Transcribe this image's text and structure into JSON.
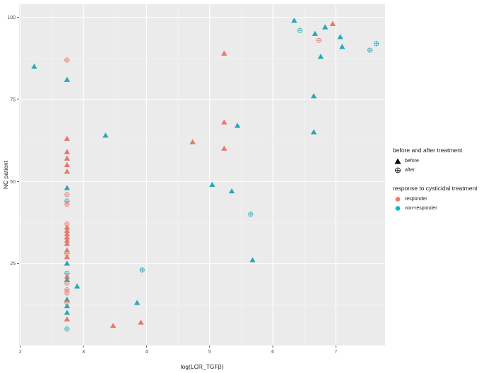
{
  "chart_data": {
    "type": "scatter",
    "xlabel": "log(LCR_TGFβ)",
    "ylabel": "NC patient",
    "xlim": [
      1.98,
      7.78
    ],
    "ylim": [
      0,
      104
    ],
    "x_ticks": [
      2,
      3,
      4,
      5,
      6,
      7
    ],
    "x_tick_labels": [
      "2",
      "3",
      "4",
      "5",
      "6",
      "7"
    ],
    "y_ticks": [
      25,
      50,
      75,
      100
    ],
    "y_tick_labels": [
      "25",
      "50",
      "75",
      "100"
    ],
    "grid": true,
    "background": "#ebebeb",
    "legend_placement": "right",
    "legend": {
      "shape_title": "before and after treatment",
      "shape_items": [
        {
          "key": "before",
          "label": "before",
          "shape": "triangle"
        },
        {
          "key": "after",
          "label": "after",
          "shape": "circle-plus"
        }
      ],
      "color_title": "response to cysticidal treatment",
      "color_items": [
        {
          "key": "responder",
          "label": "responder",
          "color": "#f8766d"
        },
        {
          "key": "non-responder",
          "label": "non-responder",
          "color": "#00bfc4"
        }
      ]
    },
    "colors": {
      "responder": "#e8776b",
      "non-responder": "#26a9b6"
    },
    "points": [
      {
        "x": 2.22,
        "y": 85,
        "group": "non-responder",
        "time": "before"
      },
      {
        "x": 2.74,
        "y": 81,
        "group": "non-responder",
        "time": "before"
      },
      {
        "x": 2.74,
        "y": 87,
        "group": "responder",
        "time": "after"
      },
      {
        "x": 2.74,
        "y": 63,
        "group": "responder",
        "time": "before"
      },
      {
        "x": 2.74,
        "y": 59,
        "group": "responder",
        "time": "before"
      },
      {
        "x": 2.74,
        "y": 57,
        "group": "responder",
        "time": "before"
      },
      {
        "x": 2.74,
        "y": 55,
        "group": "responder",
        "time": "before"
      },
      {
        "x": 2.74,
        "y": 53,
        "group": "responder",
        "time": "before"
      },
      {
        "x": 2.74,
        "y": 48,
        "group": "non-responder",
        "time": "before"
      },
      {
        "x": 2.74,
        "y": 46,
        "group": "responder",
        "time": "after"
      },
      {
        "x": 2.74,
        "y": 44,
        "group": "non-responder",
        "time": "after"
      },
      {
        "x": 2.74,
        "y": 43,
        "group": "responder",
        "time": "after"
      },
      {
        "x": 2.74,
        "y": 37,
        "group": "responder",
        "time": "after"
      },
      {
        "x": 2.74,
        "y": 36,
        "group": "responder",
        "time": "before"
      },
      {
        "x": 2.74,
        "y": 35,
        "group": "responder",
        "time": "before"
      },
      {
        "x": 2.74,
        "y": 34,
        "group": "responder",
        "time": "before"
      },
      {
        "x": 2.74,
        "y": 33,
        "group": "responder",
        "time": "before"
      },
      {
        "x": 2.74,
        "y": 32,
        "group": "responder",
        "time": "before"
      },
      {
        "x": 2.74,
        "y": 31,
        "group": "responder",
        "time": "before"
      },
      {
        "x": 2.74,
        "y": 29,
        "group": "responder",
        "time": "before"
      },
      {
        "x": 2.74,
        "y": 28,
        "group": "responder",
        "time": "after"
      },
      {
        "x": 2.74,
        "y": 27,
        "group": "responder",
        "time": "before"
      },
      {
        "x": 2.74,
        "y": 25,
        "group": "non-responder",
        "time": "before"
      },
      {
        "x": 2.74,
        "y": 22,
        "group": "non-responder",
        "time": "after"
      },
      {
        "x": 2.74,
        "y": 21,
        "group": "responder",
        "time": "before"
      },
      {
        "x": 2.74,
        "y": 20,
        "group": "non-responder",
        "time": "before"
      },
      {
        "x": 2.74,
        "y": 19,
        "group": "responder",
        "time": "after"
      },
      {
        "x": 2.74,
        "y": 17,
        "group": "responder",
        "time": "after"
      },
      {
        "x": 2.74,
        "y": 16,
        "group": "responder",
        "time": "after"
      },
      {
        "x": 2.74,
        "y": 14,
        "group": "non-responder",
        "time": "before"
      },
      {
        "x": 2.74,
        "y": 13,
        "group": "responder",
        "time": "after"
      },
      {
        "x": 2.74,
        "y": 12,
        "group": "non-responder",
        "time": "before"
      },
      {
        "x": 2.74,
        "y": 10,
        "group": "non-responder",
        "time": "before"
      },
      {
        "x": 2.74,
        "y": 8,
        "group": "responder",
        "time": "before"
      },
      {
        "x": 2.74,
        "y": 5,
        "group": "non-responder",
        "time": "after"
      },
      {
        "x": 2.9,
        "y": 18,
        "group": "non-responder",
        "time": "before"
      },
      {
        "x": 3.35,
        "y": 64,
        "group": "non-responder",
        "time": "before"
      },
      {
        "x": 3.47,
        "y": 6,
        "group": "responder",
        "time": "before"
      },
      {
        "x": 3.85,
        "y": 13,
        "group": "non-responder",
        "time": "before"
      },
      {
        "x": 3.91,
        "y": 7,
        "group": "responder",
        "time": "before"
      },
      {
        "x": 3.93,
        "y": 23,
        "group": "non-responder",
        "time": "after"
      },
      {
        "x": 4.73,
        "y": 62,
        "group": "responder",
        "time": "before"
      },
      {
        "x": 5.04,
        "y": 49,
        "group": "non-responder",
        "time": "before"
      },
      {
        "x": 5.23,
        "y": 89,
        "group": "responder",
        "time": "before"
      },
      {
        "x": 5.23,
        "y": 68,
        "group": "responder",
        "time": "before"
      },
      {
        "x": 5.23,
        "y": 60,
        "group": "responder",
        "time": "before"
      },
      {
        "x": 5.35,
        "y": 47,
        "group": "non-responder",
        "time": "before"
      },
      {
        "x": 5.44,
        "y": 67,
        "group": "non-responder",
        "time": "before"
      },
      {
        "x": 5.65,
        "y": 40,
        "group": "non-responder",
        "time": "after"
      },
      {
        "x": 5.68,
        "y": 26,
        "group": "non-responder",
        "time": "before"
      },
      {
        "x": 6.34,
        "y": 99,
        "group": "non-responder",
        "time": "before"
      },
      {
        "x": 6.43,
        "y": 96,
        "group": "non-responder",
        "time": "after"
      },
      {
        "x": 6.65,
        "y": 76,
        "group": "non-responder",
        "time": "before"
      },
      {
        "x": 6.65,
        "y": 65,
        "group": "non-responder",
        "time": "before"
      },
      {
        "x": 6.67,
        "y": 95,
        "group": "non-responder",
        "time": "before"
      },
      {
        "x": 6.73,
        "y": 93,
        "group": "responder",
        "time": "after"
      },
      {
        "x": 6.76,
        "y": 88,
        "group": "non-responder",
        "time": "before"
      },
      {
        "x": 6.83,
        "y": 97,
        "group": "non-responder",
        "time": "before"
      },
      {
        "x": 6.95,
        "y": 98,
        "group": "responder",
        "time": "before"
      },
      {
        "x": 7.07,
        "y": 94,
        "group": "non-responder",
        "time": "before"
      },
      {
        "x": 7.1,
        "y": 91,
        "group": "non-responder",
        "time": "before"
      },
      {
        "x": 7.54,
        "y": 90,
        "group": "non-responder",
        "time": "after"
      },
      {
        "x": 7.64,
        "y": 92,
        "group": "non-responder",
        "time": "after"
      }
    ]
  }
}
